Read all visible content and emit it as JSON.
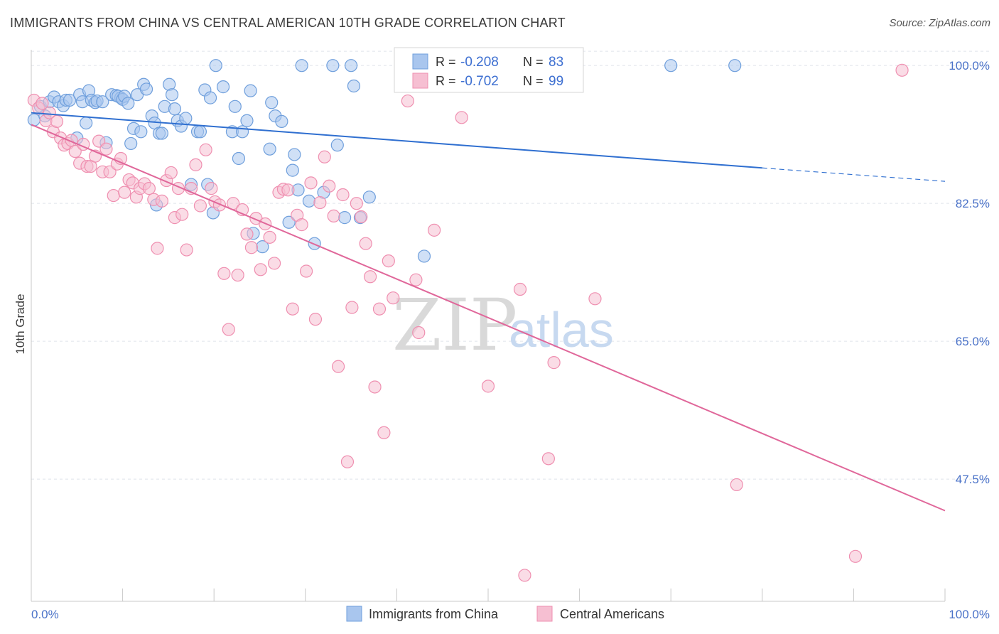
{
  "header": {
    "title": "IMMIGRANTS FROM CHINA VS CENTRAL AMERICAN 10TH GRADE CORRELATION CHART",
    "source": "Source: ZipAtlas.com"
  },
  "watermark": {
    "zip": "ZIP",
    "atlas": "atlas"
  },
  "legend": {
    "r_label": "R =",
    "n_label": "N =",
    "entries": [
      {
        "r": "-0.208",
        "n": "83"
      },
      {
        "r": "-0.702",
        "n": "99"
      }
    ]
  },
  "colors": {
    "blue": "#6f9fdc",
    "blue_fill": "#a9c6ee",
    "blue_line": "#2f6fd0",
    "pink": "#ef8fb0",
    "pink_fill": "#f6bfd2",
    "pink_line": "#e0679a",
    "tick_text": "#4a72c8",
    "grid": "#dfe3ea"
  },
  "chart_data": {
    "type": "scatter",
    "title": "IMMIGRANTS FROM CHINA VS CENTRAL AMERICAN 10TH GRADE CORRELATION CHART",
    "xlabel": "",
    "ylabel": "10th Grade",
    "xlim": [
      0,
      100
    ],
    "ylim": [
      32,
      102
    ],
    "x_tick_labels": [
      "0.0%",
      "100.0%"
    ],
    "y_ticks": [
      100,
      82.5,
      65,
      47.5
    ],
    "y_tick_labels": [
      "100.0%",
      "82.5%",
      "65.0%",
      "47.5%"
    ],
    "grid": true,
    "legend_position": "top-center",
    "series": [
      {
        "name": "Immigrants from China",
        "color": "#6f9fdc",
        "trend": {
          "x": [
            0,
            80
          ],
          "y": [
            94.0,
            87.0
          ],
          "dashed_to": [
            100,
            85.3
          ]
        },
        "points": [
          [
            0.3,
            93.1
          ],
          [
            1.0,
            94.8
          ],
          [
            1.5,
            93.6
          ],
          [
            2.0,
            95.4
          ],
          [
            2.5,
            96.0
          ],
          [
            3.0,
            95.4
          ],
          [
            3.5,
            94.9
          ],
          [
            3.8,
            95.6
          ],
          [
            4.2,
            95.6
          ],
          [
            5.0,
            90.8
          ],
          [
            5.3,
            96.3
          ],
          [
            5.6,
            95.4
          ],
          [
            6.0,
            92.7
          ],
          [
            6.3,
            96.8
          ],
          [
            6.6,
            95.6
          ],
          [
            7.0,
            95.3
          ],
          [
            8.2,
            90.2
          ],
          [
            7.2,
            95.5
          ],
          [
            7.8,
            95.4
          ],
          [
            8.8,
            96.3
          ],
          [
            9.3,
            96.2
          ],
          [
            9.8,
            95.9
          ],
          [
            9.5,
            96.1
          ],
          [
            10.0,
            95.7
          ],
          [
            10.2,
            96.1
          ],
          [
            10.6,
            95.2
          ],
          [
            10.9,
            90.1
          ],
          [
            11.2,
            92.0
          ],
          [
            11.6,
            96.3
          ],
          [
            12.0,
            91.6
          ],
          [
            12.3,
            97.6
          ],
          [
            12.6,
            97.0
          ],
          [
            13.2,
            93.6
          ],
          [
            13.5,
            92.7
          ],
          [
            14.0,
            91.4
          ],
          [
            14.3,
            91.4
          ],
          [
            14.6,
            94.8
          ],
          [
            13.7,
            82.3
          ],
          [
            15.1,
            97.6
          ],
          [
            15.4,
            96.3
          ],
          [
            15.7,
            94.5
          ],
          [
            16.0,
            93.0
          ],
          [
            16.4,
            92.3
          ],
          [
            16.9,
            93.3
          ],
          [
            17.5,
            84.9
          ],
          [
            18.2,
            91.6
          ],
          [
            18.5,
            91.6
          ],
          [
            19.0,
            96.9
          ],
          [
            19.3,
            84.9
          ],
          [
            19.6,
            95.9
          ],
          [
            19.9,
            81.3
          ],
          [
            20.2,
            100.0
          ],
          [
            21.0,
            97.3
          ],
          [
            22.0,
            91.6
          ],
          [
            22.3,
            94.8
          ],
          [
            22.7,
            88.2
          ],
          [
            23.1,
            91.6
          ],
          [
            23.6,
            93.0
          ],
          [
            24.0,
            96.8
          ],
          [
            24.3,
            78.7
          ],
          [
            25.3,
            77.0
          ],
          [
            26.1,
            89.4
          ],
          [
            26.3,
            95.3
          ],
          [
            26.7,
            93.6
          ],
          [
            27.4,
            92.9
          ],
          [
            28.2,
            80.1
          ],
          [
            28.6,
            86.7
          ],
          [
            28.8,
            88.7
          ],
          [
            29.2,
            84.2
          ],
          [
            29.6,
            100.0
          ],
          [
            30.4,
            82.8
          ],
          [
            31.0,
            77.4
          ],
          [
            32.0,
            83.9
          ],
          [
            33.0,
            100.0
          ],
          [
            33.5,
            89.9
          ],
          [
            34.3,
            80.7
          ],
          [
            35.0,
            100.0
          ],
          [
            35.3,
            97.4
          ],
          [
            36.0,
            80.7
          ],
          [
            37.0,
            83.3
          ],
          [
            43.0,
            75.8
          ],
          [
            70.0,
            100.0
          ],
          [
            77.0,
            100.0
          ]
        ]
      },
      {
        "name": "Central Americans",
        "color": "#ef8fb0",
        "trend": {
          "x": [
            0,
            100
          ],
          "y": [
            92.5,
            43.5
          ]
        },
        "points": [
          [
            0.3,
            95.6
          ],
          [
            0.8,
            94.6
          ],
          [
            1.2,
            95.2
          ],
          [
            1.6,
            93.0
          ],
          [
            2.0,
            94.0
          ],
          [
            2.4,
            91.6
          ],
          [
            2.8,
            92.9
          ],
          [
            3.2,
            90.8
          ],
          [
            3.6,
            89.9
          ],
          [
            4.0,
            90.1
          ],
          [
            4.4,
            90.5
          ],
          [
            4.8,
            89.1
          ],
          [
            5.3,
            87.6
          ],
          [
            5.7,
            90.0
          ],
          [
            6.1,
            87.2
          ],
          [
            6.5,
            87.2
          ],
          [
            7.0,
            88.5
          ],
          [
            7.4,
            90.4
          ],
          [
            7.8,
            86.5
          ],
          [
            8.2,
            89.4
          ],
          [
            8.6,
            86.5
          ],
          [
            9.0,
            83.5
          ],
          [
            9.4,
            87.5
          ],
          [
            9.8,
            88.2
          ],
          [
            10.2,
            83.9
          ],
          [
            10.7,
            85.5
          ],
          [
            11.1,
            85.1
          ],
          [
            11.5,
            83.3
          ],
          [
            11.9,
            84.4
          ],
          [
            12.4,
            85.0
          ],
          [
            12.9,
            84.4
          ],
          [
            13.4,
            83.0
          ],
          [
            13.8,
            76.8
          ],
          [
            14.3,
            82.8
          ],
          [
            14.8,
            85.4
          ],
          [
            15.3,
            86.4
          ],
          [
            15.7,
            80.7
          ],
          [
            16.1,
            84.4
          ],
          [
            16.5,
            81.1
          ],
          [
            17.0,
            76.6
          ],
          [
            17.5,
            84.4
          ],
          [
            18.0,
            87.4
          ],
          [
            18.5,
            82.2
          ],
          [
            19.1,
            89.3
          ],
          [
            19.7,
            84.4
          ],
          [
            20.1,
            82.7
          ],
          [
            20.6,
            82.3
          ],
          [
            21.1,
            73.6
          ],
          [
            21.6,
            66.5
          ],
          [
            22.1,
            82.5
          ],
          [
            22.6,
            73.4
          ],
          [
            23.1,
            81.7
          ],
          [
            23.6,
            78.6
          ],
          [
            24.1,
            76.9
          ],
          [
            24.6,
            80.6
          ],
          [
            25.1,
            74.1
          ],
          [
            25.6,
            79.9
          ],
          [
            26.1,
            78.2
          ],
          [
            26.6,
            74.9
          ],
          [
            27.1,
            83.9
          ],
          [
            27.6,
            84.3
          ],
          [
            28.1,
            84.2
          ],
          [
            28.6,
            69.1
          ],
          [
            29.1,
            81.0
          ],
          [
            29.6,
            79.8
          ],
          [
            30.1,
            73.9
          ],
          [
            30.6,
            85.1
          ],
          [
            31.1,
            67.8
          ],
          [
            31.6,
            82.6
          ],
          [
            32.1,
            88.4
          ],
          [
            32.6,
            84.7
          ],
          [
            33.1,
            80.9
          ],
          [
            33.6,
            61.8
          ],
          [
            34.1,
            83.6
          ],
          [
            34.6,
            49.7
          ],
          [
            35.1,
            69.3
          ],
          [
            35.6,
            82.5
          ],
          [
            36.1,
            80.8
          ],
          [
            36.6,
            77.4
          ],
          [
            37.1,
            73.2
          ],
          [
            37.6,
            59.2
          ],
          [
            38.1,
            69.1
          ],
          [
            38.6,
            53.4
          ],
          [
            39.1,
            75.2
          ],
          [
            39.6,
            70.5
          ],
          [
            41.2,
            95.5
          ],
          [
            42.1,
            72.8
          ],
          [
            42.4,
            66.1
          ],
          [
            44.1,
            79.1
          ],
          [
            47.1,
            93.4
          ],
          [
            50.0,
            59.3
          ],
          [
            53.5,
            71.6
          ],
          [
            54.0,
            35.3
          ],
          [
            56.6,
            50.1
          ],
          [
            57.2,
            62.3
          ],
          [
            61.7,
            70.4
          ],
          [
            77.2,
            46.8
          ],
          [
            90.2,
            37.7
          ],
          [
            95.3,
            99.4
          ]
        ]
      }
    ]
  },
  "bottom_legend": [
    {
      "label": "Immigrants from China"
    },
    {
      "label": "Central Americans"
    }
  ]
}
